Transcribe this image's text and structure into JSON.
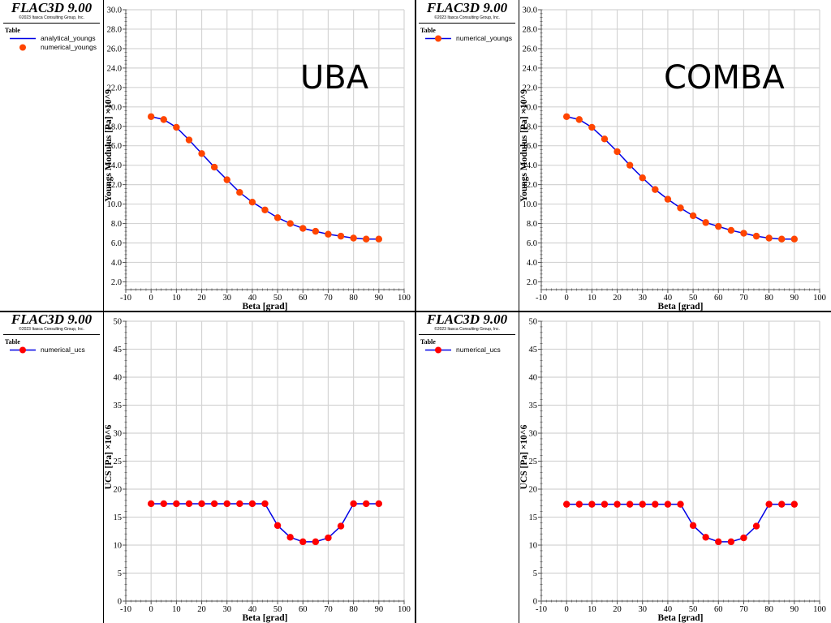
{
  "panels": [
    {
      "id": "uba-youngs",
      "brand": "FLAC3D 9.00",
      "copyright": "©2023 Itasca Consulting Group, Inc.",
      "legend_title": "Table",
      "legend": [
        {
          "label": "analytical_youngs",
          "style": "line"
        },
        {
          "label": "numerical_youngs",
          "style": "marker"
        }
      ],
      "overlay_label": "UBA"
    },
    {
      "id": "comba-youngs",
      "brand": "FLAC3D 9.00",
      "copyright": "©2023 Itasca Consulting Group, Inc.",
      "legend_title": "Table",
      "legend": [
        {
          "label": "numerical_youngs",
          "style": "line-marker"
        }
      ],
      "overlay_label": "COMBA"
    },
    {
      "id": "uba-ucs",
      "brand": "FLAC3D 9.00",
      "copyright": "©2023 Itasca Consulting Group, Inc.",
      "legend_title": "Table",
      "legend": [
        {
          "label": "numerical_ucs",
          "style": "line-marker"
        }
      ],
      "overlay_label": ""
    },
    {
      "id": "comba-ucs",
      "brand": "FLAC3D 9.00",
      "copyright": "©2023 Itasca Consulting Group, Inc.",
      "legend_title": "Table",
      "legend": [
        {
          "label": "numerical_ucs",
          "style": "line-marker"
        }
      ],
      "overlay_label": ""
    }
  ],
  "colors": {
    "line": "#0000e6",
    "marker_youngs": "#ff4500",
    "marker_ucs": "#ff0000",
    "grid": "#d4d4d4",
    "axis": "#000000"
  },
  "chart_data": [
    {
      "type": "line",
      "title": "UBA",
      "xlabel": "Beta [grad]",
      "ylabel": "Youngs Modulus [Pa] ×10^9",
      "xlim": [
        -10,
        100
      ],
      "ylim": [
        1.2,
        30.0
      ],
      "xticks": [
        -10,
        0,
        10,
        20,
        30,
        40,
        50,
        60,
        70,
        80,
        90,
        100
      ],
      "yticks": [
        2.0,
        4.0,
        6.0,
        8.0,
        10.0,
        12.0,
        14.0,
        16.0,
        18.0,
        20.0,
        22.0,
        24.0,
        26.0,
        28.0,
        30.0
      ],
      "ytick_decimals": 1,
      "grid": true,
      "legend_position": "left-panel",
      "x": [
        0,
        5,
        10,
        15,
        20,
        25,
        30,
        35,
        40,
        45,
        50,
        55,
        60,
        65,
        70,
        75,
        80,
        85,
        90
      ],
      "series": [
        {
          "name": "analytical_youngs",
          "style": "line",
          "values": [
            19.0,
            18.7,
            17.9,
            16.6,
            15.2,
            13.8,
            12.5,
            11.2,
            10.2,
            9.4,
            8.6,
            8.0,
            7.5,
            7.2,
            6.9,
            6.7,
            6.5,
            6.4,
            6.4
          ]
        },
        {
          "name": "numerical_youngs",
          "style": "marker",
          "values": [
            19.0,
            18.7,
            17.9,
            16.6,
            15.2,
            13.8,
            12.5,
            11.2,
            10.2,
            9.4,
            8.6,
            8.0,
            7.5,
            7.2,
            6.9,
            6.7,
            6.5,
            6.4,
            6.4
          ]
        }
      ]
    },
    {
      "type": "line",
      "title": "COMBA",
      "xlabel": "Beta [grad]",
      "ylabel": "Youngs Modulus [Pa] ×10^9",
      "xlim": [
        -10,
        100
      ],
      "ylim": [
        1.2,
        30.0
      ],
      "xticks": [
        -10,
        0,
        10,
        20,
        30,
        40,
        50,
        60,
        70,
        80,
        90,
        100
      ],
      "yticks": [
        2.0,
        4.0,
        6.0,
        8.0,
        10.0,
        12.0,
        14.0,
        16.0,
        18.0,
        20.0,
        22.0,
        24.0,
        26.0,
        28.0,
        30.0
      ],
      "ytick_decimals": 1,
      "grid": true,
      "legend_position": "left-panel",
      "x": [
        0,
        5,
        10,
        15,
        20,
        25,
        30,
        35,
        40,
        45,
        50,
        55,
        60,
        65,
        70,
        75,
        80,
        85,
        90
      ],
      "series": [
        {
          "name": "numerical_youngs",
          "style": "line-marker",
          "values": [
            19.0,
            18.7,
            17.9,
            16.7,
            15.4,
            14.0,
            12.7,
            11.5,
            10.5,
            9.6,
            8.8,
            8.1,
            7.7,
            7.3,
            7.0,
            6.7,
            6.5,
            6.4,
            6.4
          ]
        }
      ]
    },
    {
      "type": "line",
      "title": "",
      "xlabel": "Beta [grad]",
      "ylabel": "UCS [Pa] ×10^6",
      "xlim": [
        -10,
        100
      ],
      "ylim": [
        0,
        50
      ],
      "xticks": [
        -10,
        0,
        10,
        20,
        30,
        40,
        50,
        60,
        70,
        80,
        90,
        100
      ],
      "yticks": [
        0,
        5,
        10,
        15,
        20,
        25,
        30,
        35,
        40,
        45,
        50
      ],
      "ytick_decimals": 0,
      "grid": true,
      "legend_position": "left-panel",
      "x": [
        0,
        5,
        10,
        15,
        20,
        25,
        30,
        35,
        40,
        45,
        50,
        55,
        60,
        65,
        70,
        75,
        80,
        85,
        90
      ],
      "series": [
        {
          "name": "numerical_ucs",
          "style": "line-marker",
          "values": [
            17.4,
            17.4,
            17.4,
            17.4,
            17.4,
            17.4,
            17.4,
            17.4,
            17.4,
            17.4,
            13.5,
            11.4,
            10.6,
            10.6,
            11.3,
            13.4,
            17.4,
            17.4,
            17.4
          ]
        }
      ]
    },
    {
      "type": "line",
      "title": "",
      "xlabel": "Beta [grad]",
      "ylabel": "UCS [Pa] ×10^6",
      "xlim": [
        -10,
        100
      ],
      "ylim": [
        0,
        50
      ],
      "xticks": [
        -10,
        0,
        10,
        20,
        30,
        40,
        50,
        60,
        70,
        80,
        90,
        100
      ],
      "yticks": [
        0,
        5,
        10,
        15,
        20,
        25,
        30,
        35,
        40,
        45,
        50
      ],
      "ytick_decimals": 0,
      "grid": true,
      "legend_position": "left-panel",
      "x": [
        0,
        5,
        10,
        15,
        20,
        25,
        30,
        35,
        40,
        45,
        50,
        55,
        60,
        65,
        70,
        75,
        80,
        85,
        90
      ],
      "series": [
        {
          "name": "numerical_ucs",
          "style": "line-marker",
          "values": [
            17.3,
            17.3,
            17.3,
            17.3,
            17.3,
            17.3,
            17.3,
            17.3,
            17.3,
            17.3,
            13.5,
            11.4,
            10.6,
            10.6,
            11.3,
            13.4,
            17.3,
            17.3,
            17.3
          ]
        }
      ]
    }
  ]
}
